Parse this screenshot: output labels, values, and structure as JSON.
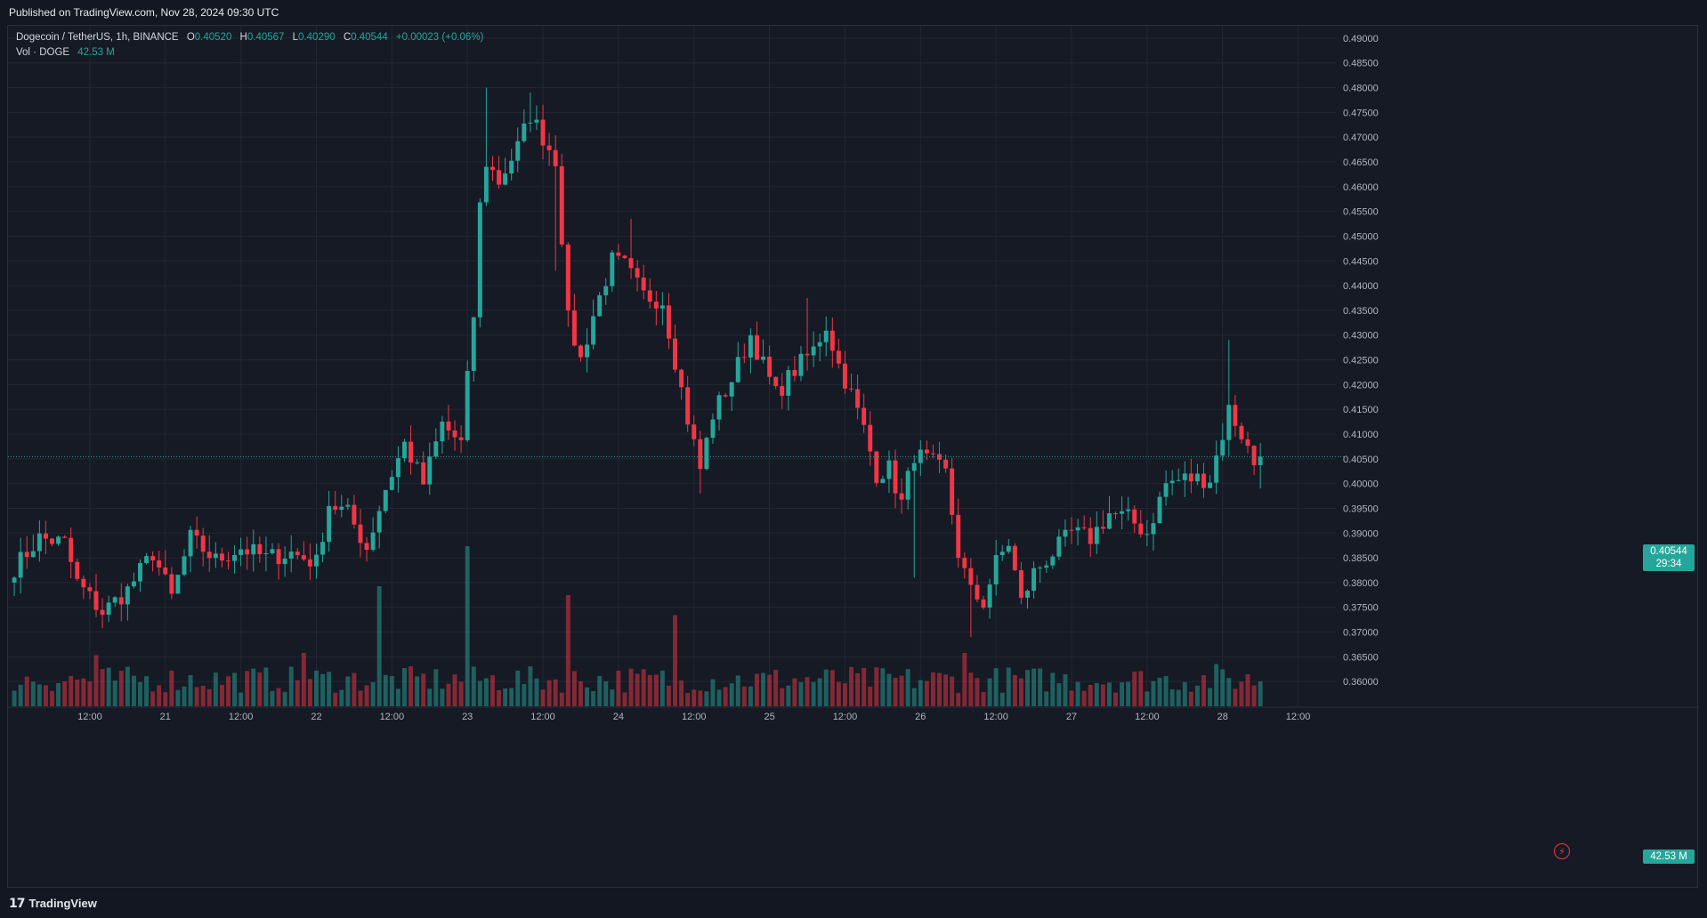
{
  "header": {
    "published": "Published on TradingView.com, Nov 28, 2024 09:30 UTC"
  },
  "legend": {
    "symbol": "Dogecoin / TetherUS, 1h, BINANCE",
    "o_label": "O",
    "o": "0.40520",
    "h_label": "H",
    "h": "0.40567",
    "l_label": "L",
    "l": "0.40290",
    "c_label": "C",
    "c": "0.40544",
    "change": "+0.00023 (+0.06%)",
    "vol_label": "Vol · DOGE",
    "vol_value": "42.53 M"
  },
  "badges": {
    "last_price": "0.40544",
    "countdown": "29:34",
    "last_volume": "42.53 M"
  },
  "footer": {
    "logo_mark": "𝟭𝟳",
    "logo_text": "TradingView"
  },
  "icons": {
    "alert": "bolt-icon"
  },
  "colors": {
    "up": "#26a69a",
    "down": "#f23645",
    "background": "#161a25",
    "grid": "#232733"
  },
  "chart_data": {
    "type": "candlestick",
    "interval": "1h",
    "y_ticks": [
      "0.36000",
      "0.36500",
      "0.37000",
      "0.37500",
      "0.38000",
      "0.38500",
      "0.39000",
      "0.39500",
      "0.40000",
      "0.40500",
      "0.41000",
      "0.41500",
      "0.42000",
      "0.42500",
      "0.43000",
      "0.43500",
      "0.44000",
      "0.44500",
      "0.45000",
      "0.45500",
      "0.46000",
      "0.46500",
      "0.47000",
      "0.47500",
      "0.48000",
      "0.48500",
      "0.49000"
    ],
    "ylim": [
      0.355,
      0.4925
    ],
    "x_ticks": [
      {
        "label": "12:00",
        "t": 12
      },
      {
        "label": "21",
        "t": 24
      },
      {
        "label": "12:00",
        "t": 36
      },
      {
        "label": "22",
        "t": 48
      },
      {
        "label": "12:00",
        "t": 60
      },
      {
        "label": "23",
        "t": 72
      },
      {
        "label": "12:00",
        "t": 84
      },
      {
        "label": "24",
        "t": 96
      },
      {
        "label": "12:00",
        "t": 108
      },
      {
        "label": "25",
        "t": 120
      },
      {
        "label": "12:00",
        "t": 132
      },
      {
        "label": "26",
        "t": 144
      },
      {
        "label": "12:00",
        "t": 156
      },
      {
        "label": "27",
        "t": 168
      },
      {
        "label": "12:00",
        "t": 180
      },
      {
        "label": "28",
        "t": 192
      },
      {
        "label": "12:00",
        "t": 204
      }
    ],
    "x_range": [
      -1,
      210
    ],
    "last_price": 0.40544,
    "checkpoints": [
      [
        0,
        0.383
      ],
      [
        4,
        0.389
      ],
      [
        8,
        0.388
      ],
      [
        10,
        0.38
      ],
      [
        14,
        0.374
      ],
      [
        18,
        0.3785
      ],
      [
        22,
        0.386
      ],
      [
        25,
        0.377
      ],
      [
        28,
        0.389
      ],
      [
        32,
        0.3845
      ],
      [
        36,
        0.387
      ],
      [
        40,
        0.385
      ],
      [
        44,
        0.386
      ],
      [
        48,
        0.384
      ],
      [
        50,
        0.396
      ],
      [
        53,
        0.394
      ],
      [
        56,
        0.387
      ],
      [
        59,
        0.399
      ],
      [
        62,
        0.408
      ],
      [
        65,
        0.4
      ],
      [
        68,
        0.412
      ],
      [
        71,
        0.408
      ],
      [
        73,
        0.434
      ],
      [
        74,
        0.456
      ],
      [
        75,
        0.465
      ],
      [
        77,
        0.461
      ],
      [
        80,
        0.468
      ],
      [
        82,
        0.4745
      ],
      [
        84,
        0.47
      ],
      [
        86,
        0.4655
      ],
      [
        87,
        0.45
      ],
      [
        88,
        0.433
      ],
      [
        90,
        0.425
      ],
      [
        92,
        0.434
      ],
      [
        95,
        0.445
      ],
      [
        97,
        0.444
      ],
      [
        100,
        0.438
      ],
      [
        103,
        0.437
      ],
      [
        105,
        0.425
      ],
      [
        107,
        0.413
      ],
      [
        109,
        0.403
      ],
      [
        111,
        0.414
      ],
      [
        114,
        0.421
      ],
      [
        117,
        0.43
      ],
      [
        119,
        0.424
      ],
      [
        121,
        0.418
      ],
      [
        124,
        0.423
      ],
      [
        127,
        0.427
      ],
      [
        129,
        0.432
      ],
      [
        131,
        0.424
      ],
      [
        133,
        0.418
      ],
      [
        135,
        0.411
      ],
      [
        137,
        0.402
      ],
      [
        139,
        0.403
      ],
      [
        141,
        0.396
      ],
      [
        143,
        0.406
      ],
      [
        146,
        0.404
      ],
      [
        148,
        0.402
      ],
      [
        150,
        0.386
      ],
      [
        152,
        0.378
      ],
      [
        154,
        0.376
      ],
      [
        156,
        0.384
      ],
      [
        158,
        0.388
      ],
      [
        160,
        0.376
      ],
      [
        162,
        0.382
      ],
      [
        165,
        0.386
      ],
      [
        168,
        0.39
      ],
      [
        171,
        0.389
      ],
      [
        174,
        0.394
      ],
      [
        177,
        0.393
      ],
      [
        180,
        0.39
      ],
      [
        183,
        0.4
      ],
      [
        186,
        0.401
      ],
      [
        190,
        0.401
      ],
      [
        192,
        0.41
      ],
      [
        193,
        0.415
      ],
      [
        195,
        0.41
      ],
      [
        197,
        0.404
      ],
      [
        198,
        0.40544
      ]
    ],
    "volume_spikes": [
      {
        "t": 72,
        "vol": 7.2
      },
      {
        "t": 88,
        "vol": 5.0
      },
      {
        "t": 105,
        "vol": 4.1
      },
      {
        "t": 58,
        "vol": 5.4
      },
      {
        "t": 46,
        "vol": 2.4
      },
      {
        "t": 13,
        "vol": 2.3
      },
      {
        "t": 151,
        "vol": 2.4
      },
      {
        "t": 191,
        "vol": 1.9
      }
    ],
    "last_volume": 42.53
  }
}
